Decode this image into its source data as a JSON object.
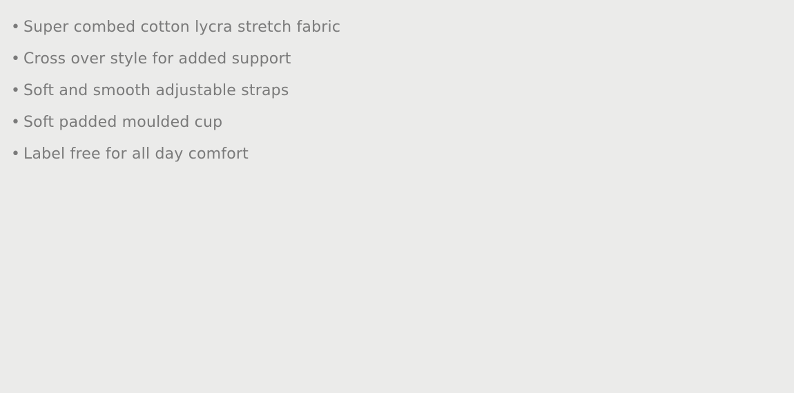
{
  "features": {
    "bullet": "•",
    "items": [
      "Super combed cotton lycra stretch fabric",
      "Cross over style for added support",
      "Soft and smooth adjustable straps",
      "Soft padded moulded cup",
      "Label free for all day comfort"
    ]
  },
  "colors": {
    "background": "#ebebea",
    "text": "#7a7a7a"
  }
}
